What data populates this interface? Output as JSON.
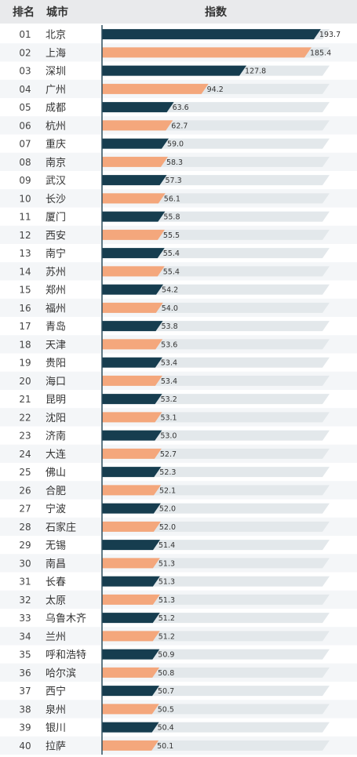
{
  "header": {
    "rank_label": "排名",
    "city_label": "城市",
    "index_label": "指数"
  },
  "colors": {
    "dark": "#163d4f",
    "light": "#f4a77c",
    "track": "#e3e8eb",
    "header_bg": "#e9eaec",
    "stripe": "#f4f6f8",
    "axis": "#2d4f5e"
  },
  "chart_data": {
    "type": "bar",
    "orientation": "horizontal",
    "max": 200,
    "rows": [
      {
        "rank": "01",
        "city": "北京",
        "value": 193.7
      },
      {
        "rank": "02",
        "city": "上海",
        "value": 185.4
      },
      {
        "rank": "03",
        "city": "深圳",
        "value": 127.8
      },
      {
        "rank": "04",
        "city": "广州",
        "value": 94.2
      },
      {
        "rank": "05",
        "city": "成都",
        "value": 63.6
      },
      {
        "rank": "06",
        "city": "杭州",
        "value": 62.7
      },
      {
        "rank": "07",
        "city": "重庆",
        "value": 59.0
      },
      {
        "rank": "08",
        "city": "南京",
        "value": 58.3
      },
      {
        "rank": "09",
        "city": "武汉",
        "value": 57.3
      },
      {
        "rank": "10",
        "city": "长沙",
        "value": 56.1
      },
      {
        "rank": "11",
        "city": "厦门",
        "value": 55.8
      },
      {
        "rank": "12",
        "city": "西安",
        "value": 55.5
      },
      {
        "rank": "13",
        "city": "南宁",
        "value": 55.4
      },
      {
        "rank": "14",
        "city": "苏州",
        "value": 55.4
      },
      {
        "rank": "15",
        "city": "郑州",
        "value": 54.2
      },
      {
        "rank": "16",
        "city": "福州",
        "value": 54.0
      },
      {
        "rank": "17",
        "city": "青岛",
        "value": 53.8
      },
      {
        "rank": "18",
        "city": "天津",
        "value": 53.6
      },
      {
        "rank": "19",
        "city": "贵阳",
        "value": 53.4
      },
      {
        "rank": "20",
        "city": "海口",
        "value": 53.4
      },
      {
        "rank": "21",
        "city": "昆明",
        "value": 53.2
      },
      {
        "rank": "22",
        "city": "沈阳",
        "value": 53.1
      },
      {
        "rank": "23",
        "city": "济南",
        "value": 53.0
      },
      {
        "rank": "24",
        "city": "大连",
        "value": 52.7
      },
      {
        "rank": "25",
        "city": "佛山",
        "value": 52.3
      },
      {
        "rank": "26",
        "city": "合肥",
        "value": 52.1
      },
      {
        "rank": "27",
        "city": "宁波",
        "value": 52.0
      },
      {
        "rank": "28",
        "city": "石家庄",
        "value": 52.0
      },
      {
        "rank": "29",
        "city": "无锡",
        "value": 51.4
      },
      {
        "rank": "30",
        "city": "南昌",
        "value": 51.3
      },
      {
        "rank": "31",
        "city": "长春",
        "value": 51.3
      },
      {
        "rank": "32",
        "city": "太原",
        "value": 51.3
      },
      {
        "rank": "33",
        "city": "乌鲁木齐",
        "value": 51.2
      },
      {
        "rank": "34",
        "city": "兰州",
        "value": 51.2
      },
      {
        "rank": "35",
        "city": "呼和浩特",
        "value": 50.9
      },
      {
        "rank": "36",
        "city": "哈尔滨",
        "value": 50.8
      },
      {
        "rank": "37",
        "city": "西宁",
        "value": 50.7
      },
      {
        "rank": "38",
        "city": "泉州",
        "value": 50.5
      },
      {
        "rank": "39",
        "city": "银川",
        "value": 50.4
      },
      {
        "rank": "40",
        "city": "拉萨",
        "value": 50.1
      }
    ]
  }
}
